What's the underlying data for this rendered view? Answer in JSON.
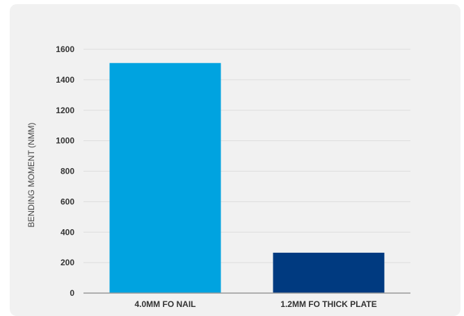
{
  "chart_data": {
    "type": "bar",
    "title": "",
    "xlabel": "",
    "ylabel": "BENDING MOMENT (NMM)",
    "categories": [
      "4.0MM FO NAIL",
      "1.2MM FO THICK PLATE"
    ],
    "values": [
      1510,
      265
    ],
    "colors": [
      "#00a3e0",
      "#003a80"
    ],
    "ylim": [
      0,
      1600
    ],
    "yticks": [
      0,
      200,
      400,
      600,
      800,
      1000,
      1200,
      1400,
      1600
    ],
    "grid": true,
    "legend": "none"
  }
}
